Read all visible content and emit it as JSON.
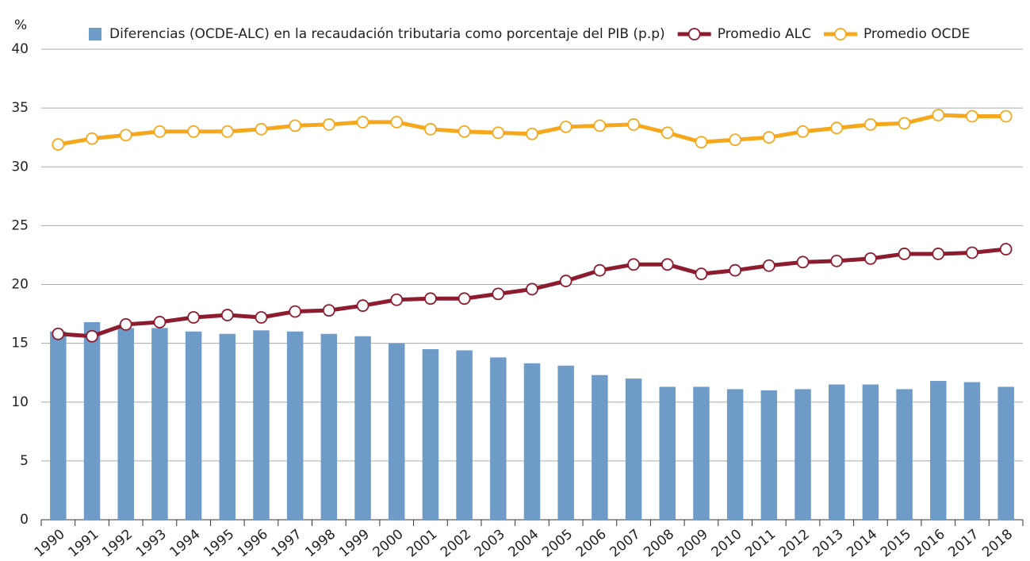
{
  "chart_data": {
    "type": "bar_line",
    "y_label": "%",
    "categories": [
      "1990",
      "1991",
      "1992",
      "1993",
      "1994",
      "1995",
      "1996",
      "1997",
      "1998",
      "1999",
      "2000",
      "2001",
      "2002",
      "2003",
      "2004",
      "2005",
      "2006",
      "2007",
      "2008",
      "2009",
      "2010",
      "2011",
      "2012",
      "2013",
      "2014",
      "2015",
      "2016",
      "2017",
      "2018"
    ],
    "series": [
      {
        "name": "Diferencias (OCDE-ALC) en la recaudación tributaria como porcentaje del PIB (p.p)",
        "type": "bar",
        "color": "#6f9bc8",
        "values": [
          16.0,
          16.8,
          16.3,
          16.3,
          16.0,
          15.8,
          16.1,
          16.0,
          15.8,
          15.6,
          15.0,
          14.5,
          14.4,
          13.8,
          13.3,
          13.1,
          12.3,
          12.0,
          11.3,
          11.3,
          11.1,
          11.0,
          11.1,
          11.5,
          11.5,
          11.1,
          11.8,
          11.7,
          11.3
        ]
      },
      {
        "name": "Promedio ALC",
        "type": "line",
        "color": "#8c1c2e",
        "values": [
          15.8,
          15.6,
          16.6,
          16.8,
          17.2,
          17.4,
          17.2,
          17.7,
          17.8,
          18.2,
          18.7,
          18.8,
          18.8,
          19.2,
          19.6,
          20.3,
          21.2,
          21.7,
          21.7,
          20.9,
          21.2,
          21.6,
          21.9,
          22.0,
          22.2,
          22.6,
          22.6,
          22.7,
          23.0
        ]
      },
      {
        "name": "Promedio OCDE",
        "type": "line",
        "color": "#f5a81c",
        "values": [
          31.9,
          32.4,
          32.7,
          33.0,
          33.0,
          33.0,
          33.2,
          33.5,
          33.6,
          33.8,
          33.8,
          33.2,
          33.0,
          32.9,
          32.8,
          33.4,
          33.5,
          33.6,
          32.9,
          32.1,
          32.3,
          32.5,
          33.0,
          33.3,
          33.6,
          33.7,
          34.4,
          34.3,
          34.3
        ]
      }
    ],
    "ylim": [
      0,
      40
    ],
    "yticks": [
      0,
      5,
      10,
      15,
      20,
      25,
      30,
      35,
      40
    ],
    "grid": true,
    "legend": "top"
  }
}
